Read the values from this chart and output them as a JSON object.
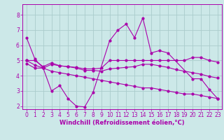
{
  "background_color": "#cce8e8",
  "grid_color": "#aacccc",
  "line_color": "#aa00aa",
  "xlabel": "Windchill (Refroidissement éolien,°C)",
  "xlabel_fontsize": 6.0,
  "tick_fontsize": 5.5,
  "xlim": [
    -0.5,
    23.5
  ],
  "ylim": [
    1.8,
    8.7
  ],
  "yticks": [
    2,
    3,
    4,
    5,
    6,
    7,
    8
  ],
  "xticks": [
    0,
    1,
    2,
    3,
    4,
    5,
    6,
    7,
    8,
    9,
    10,
    11,
    12,
    13,
    14,
    15,
    16,
    17,
    18,
    19,
    20,
    21,
    22,
    23
  ],
  "series": [
    {
      "x": [
        0,
        1,
        2,
        3,
        4,
        5,
        6,
        7,
        8,
        10,
        11,
        12,
        13,
        14,
        15,
        16,
        17,
        20,
        21,
        22,
        23
      ],
      "y": [
        6.5,
        5.1,
        4.5,
        3.0,
        3.35,
        2.5,
        2.0,
        1.95,
        2.9,
        6.3,
        7.0,
        7.4,
        6.5,
        7.8,
        5.5,
        5.65,
        5.5,
        3.8,
        3.8,
        3.1,
        2.5
      ]
    },
    {
      "x": [
        0,
        1,
        2,
        3,
        4,
        5,
        6,
        7,
        8,
        9,
        10,
        11,
        12,
        13,
        14,
        15,
        16,
        17,
        18,
        19,
        20,
        21,
        22,
        23
      ],
      "y": [
        5.0,
        5.0,
        4.6,
        4.85,
        4.65,
        4.6,
        4.55,
        4.45,
        4.45,
        4.5,
        5.0,
        5.0,
        5.0,
        5.0,
        5.0,
        5.0,
        5.0,
        5.0,
        5.0,
        5.0,
        5.2,
        5.2,
        5.0,
        4.9
      ]
    },
    {
      "x": [
        0,
        1,
        2,
        3,
        4,
        5,
        6,
        7,
        8,
        9,
        10,
        11,
        12,
        13,
        14,
        15,
        16,
        17,
        18,
        19,
        20,
        21,
        22,
        23
      ],
      "y": [
        4.8,
        4.5,
        4.5,
        4.75,
        4.65,
        4.6,
        4.5,
        4.35,
        4.35,
        4.3,
        4.45,
        4.5,
        4.55,
        4.6,
        4.75,
        4.75,
        4.65,
        4.55,
        4.4,
        4.3,
        4.2,
        4.1,
        3.95,
        3.85
      ]
    },
    {
      "x": [
        0,
        1,
        2,
        3,
        4,
        5,
        6,
        7,
        8,
        9,
        10,
        11,
        12,
        13,
        14,
        15,
        16,
        17,
        18,
        19,
        20,
        21,
        22,
        23
      ],
      "y": [
        5.0,
        4.7,
        4.5,
        4.3,
        4.2,
        4.1,
        4.0,
        3.9,
        3.8,
        3.7,
        3.6,
        3.5,
        3.4,
        3.3,
        3.2,
        3.2,
        3.1,
        3.0,
        2.9,
        2.8,
        2.8,
        2.7,
        2.6,
        2.5
      ]
    }
  ]
}
